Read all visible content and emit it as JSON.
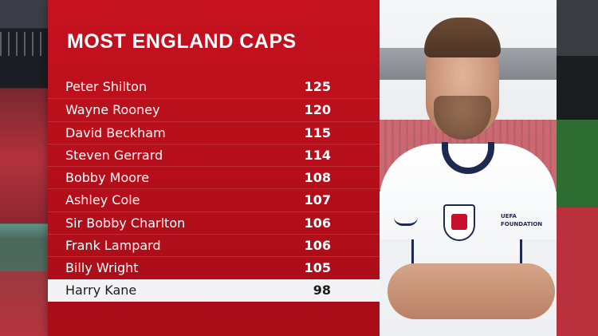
{
  "graphic": {
    "title": "MOST ENGLAND CAPS",
    "players": [
      {
        "name": "Peter Shilton",
        "caps": "125"
      },
      {
        "name": "Wayne Rooney",
        "caps": "120"
      },
      {
        "name": "David Beckham",
        "caps": "115"
      },
      {
        "name": "Steven Gerrard",
        "caps": "114"
      },
      {
        "name": "Bobby Moore",
        "caps": "108"
      },
      {
        "name": "Ashley Cole",
        "caps": "107"
      },
      {
        "name": "Sir Bobby Charlton",
        "caps": "106"
      },
      {
        "name": "Frank Lampard",
        "caps": "106"
      },
      {
        "name": "Billy Wright",
        "caps": "105"
      },
      {
        "name": "Harry Kane",
        "caps": "98"
      }
    ],
    "highlighted_index": 9
  },
  "colors": {
    "panel_red": "#c6121f",
    "highlight_row": "#f3f3f5",
    "navy": "#1c2a4f"
  },
  "photo": {
    "badge_text": "UEFA FOUNDATION"
  }
}
